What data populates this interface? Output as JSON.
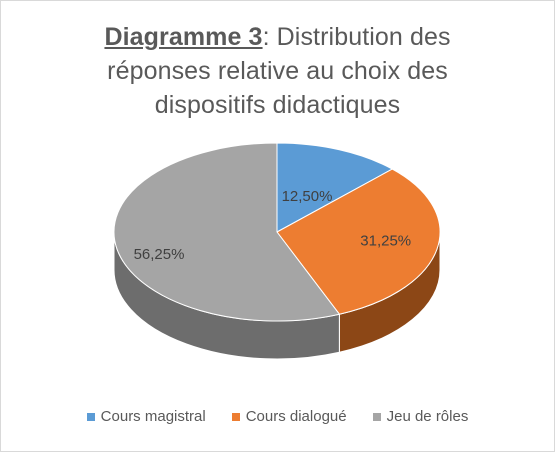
{
  "title": {
    "bold_part": "Diagramme 3",
    "line1_rest": ": Distribution des",
    "line2": "réponses relative au choix des",
    "line3": "dispositifs didactiques"
  },
  "chart_data": {
    "type": "pie",
    "style": "3d",
    "title": "Diagramme 3: Distribution des réponses relative au choix des dispositifs didactiques",
    "categories": [
      "Cours magistral",
      "Cours dialogué",
      "Jeu de rôles"
    ],
    "values": [
      12.5,
      31.25,
      56.25
    ],
    "labels": [
      "12,50%",
      "31,25%",
      "56,25%"
    ],
    "colors": [
      "#5b9bd5",
      "#ed7d31",
      "#a5a5a5"
    ],
    "side_colors": [
      "#3a6d9c",
      "#8c4716",
      "#6d6d6d"
    ],
    "legend_position": "bottom"
  }
}
